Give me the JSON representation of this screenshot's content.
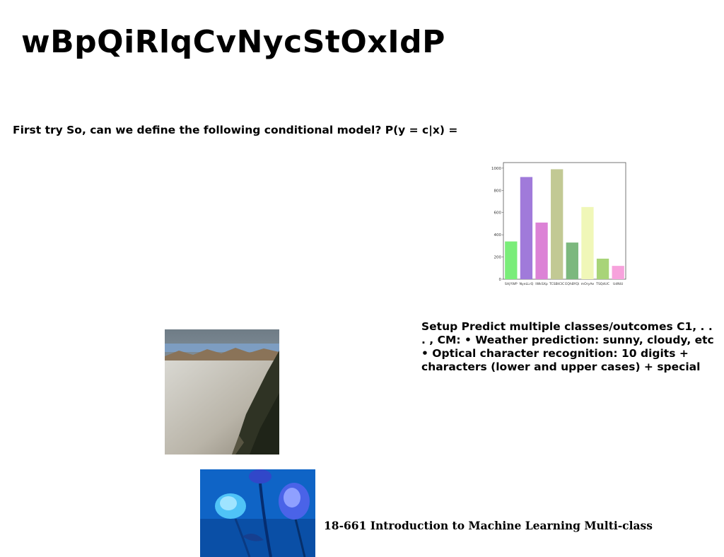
{
  "title": "wBpQiRlqCvNycStOxIdP",
  "intro_text": "First try So, can we define the following conditional model? P(y = c|x) =",
  "setup_text": "Setup Predict multiple classes/outcomes C1, . . . , CM: • Weather prediction: sunny, cloudy, etc • Optical character recognition: 10 digits + characters (lower and upper cases) + special",
  "footer_text": "18-661 Introduction to Machine Learning Multi-class",
  "chart_data": {
    "type": "bar",
    "categories": [
      "SHjYWP",
      "NyeLLrQ",
      "IWkSXp",
      "TCSBtCIC",
      "EQhBYQi",
      "mOryAe",
      "TSQdUC",
      "UdNiU"
    ],
    "values": [
      340,
      920,
      510,
      990,
      330,
      650,
      185,
      120
    ],
    "colors": [
      "#7aed79",
      "#a07ada",
      "#dc82d6",
      "#c2c994",
      "#7cb87e",
      "#f0f7b8",
      "#a8d478",
      "#f7a2dc"
    ],
    "ylim": [
      0,
      1050
    ],
    "yticks": [
      0,
      200,
      400,
      600,
      800,
      1000
    ],
    "title": "",
    "xlabel": "",
    "ylabel": "",
    "grid": false
  },
  "images": {
    "fog": "mountain-fog-photo",
    "rose": "blue-roses-photo"
  }
}
